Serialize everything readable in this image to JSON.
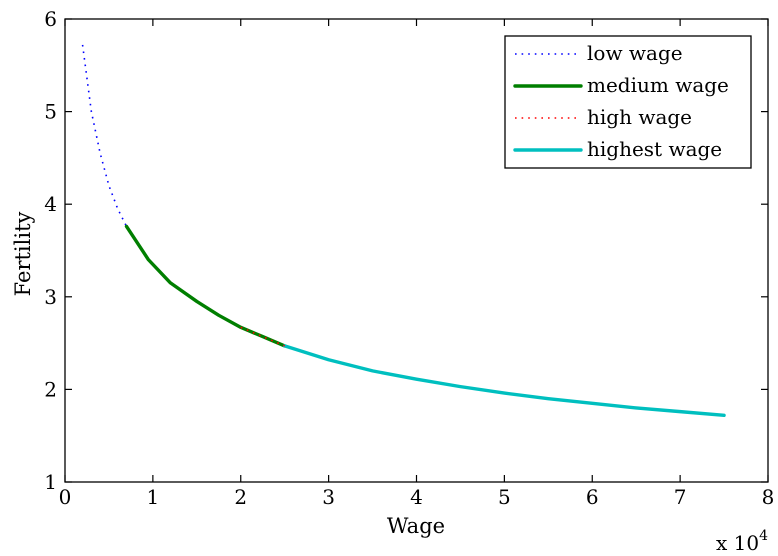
{
  "chart_data": {
    "type": "line",
    "xlabel": "Wage",
    "ylabel": "Fertility",
    "x_exponent_label": {
      "base": "x 10",
      "exp": "4"
    },
    "xlim": [
      0,
      8
    ],
    "ylim": [
      1,
      6
    ],
    "x_unit_scale": 10000,
    "xticks": [
      "0",
      "1",
      "2",
      "3",
      "4",
      "5",
      "6",
      "7",
      "8"
    ],
    "yticks": [
      "1",
      "2",
      "3",
      "4",
      "5",
      "6"
    ],
    "grid": false,
    "legend_position": "top-right",
    "series": [
      {
        "name": "low wage",
        "color": "#0000ff",
        "style": "dotted",
        "x": [
          0.2,
          0.3,
          0.4,
          0.5,
          0.6,
          0.7
        ],
        "y": [
          5.72,
          5.0,
          4.55,
          4.2,
          3.95,
          3.76
        ]
      },
      {
        "name": "medium wage",
        "color": "#007f00",
        "style": "solid",
        "x": [
          0.7,
          0.95,
          1.2,
          1.5,
          1.75,
          2.0,
          2.25,
          2.5
        ],
        "y": [
          3.76,
          3.4,
          3.15,
          2.95,
          2.8,
          2.67,
          2.57,
          2.47
        ]
      },
      {
        "name": "high wage",
        "color": "#ff0000",
        "style": "dotted",
        "x": [
          2.0,
          2.25,
          2.5
        ],
        "y": [
          2.67,
          2.57,
          2.47
        ]
      },
      {
        "name": "highest wage",
        "color": "#00bfbf",
        "style": "solid",
        "x": [
          2.5,
          3.0,
          3.5,
          4.0,
          4.5,
          5.0,
          5.5,
          6.0,
          6.5,
          7.0,
          7.5
        ],
        "y": [
          2.47,
          2.32,
          2.2,
          2.11,
          2.03,
          1.96,
          1.9,
          1.85,
          1.8,
          1.76,
          1.72
        ]
      }
    ]
  }
}
